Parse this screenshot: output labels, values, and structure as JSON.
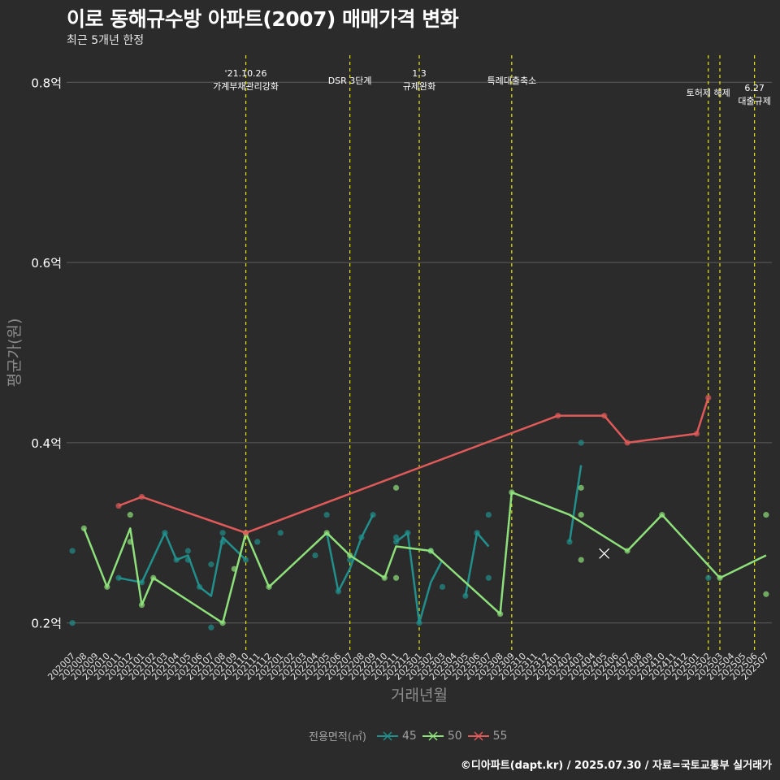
{
  "header": {
    "title": "이로 동해규수방 아파트(2007) 매매가격 변화",
    "subtitle": "최근 5개년 한정"
  },
  "footer": {
    "caption": "©디아파트(dapt.kr) / 2025.07.30 / 자료=국토교통부 실거래가"
  },
  "legend": {
    "title": "전용면적(㎡)",
    "items": [
      {
        "label": "45",
        "color": "#21908c"
      },
      {
        "label": "50",
        "color": "#8ee07a"
      },
      {
        "label": "55",
        "color": "#e05a5a"
      }
    ]
  },
  "chart_data": {
    "type": "line",
    "xlabel": "거래년월",
    "ylabel": "평균가(원)",
    "ylim": [
      0.17,
      0.83
    ],
    "yticks": [
      {
        "value": 0.2,
        "label": "0.2억"
      },
      {
        "value": 0.4,
        "label": "0.4억"
      },
      {
        "value": 0.6,
        "label": "0.6억"
      },
      {
        "value": 0.8,
        "label": "0.8억"
      }
    ],
    "categories": [
      "202007",
      "202008",
      "202009",
      "202010",
      "202011",
      "202012",
      "202101",
      "202102",
      "202103",
      "202104",
      "202105",
      "202106",
      "202107",
      "202108",
      "202109",
      "202110",
      "202111",
      "202112",
      "202201",
      "202202",
      "202203",
      "202204",
      "202205",
      "202206",
      "202207",
      "202208",
      "202209",
      "202210",
      "202211",
      "202212",
      "202301",
      "202302",
      "202303",
      "202304",
      "202305",
      "202306",
      "202307",
      "202308",
      "202309",
      "202310",
      "202311",
      "202312",
      "202401",
      "202402",
      "202403",
      "202404",
      "202405",
      "202406",
      "202407",
      "202408",
      "202409",
      "202410",
      "202411",
      "202412",
      "202501",
      "202502",
      "202503",
      "202504",
      "202505",
      "202506",
      "202507"
    ],
    "events": [
      {
        "month": "202110",
        "label": "'21.10.26\n가계부채관리강화",
        "level": 0
      },
      {
        "month": "202207",
        "label": "DSR 3단계",
        "level": 2
      },
      {
        "month": "202301",
        "label": "1.3\n규제완화",
        "level": 0
      },
      {
        "month": "202309",
        "label": "특례대출축소",
        "level": 2
      },
      {
        "month": "202502",
        "label": "토허제 해제",
        "level": 1
      },
      {
        "month": "202503",
        "label": "",
        "level": 1
      },
      {
        "month": "202506",
        "label": "6.27\n대출규제",
        "level": 3
      }
    ],
    "series": [
      {
        "name": "45",
        "color": "#21908c",
        "line": [
          [
            4,
            0.25
          ],
          [
            6,
            0.245
          ],
          [
            8,
            0.3
          ],
          [
            9,
            0.27
          ],
          [
            10,
            0.275
          ],
          [
            11,
            0.24
          ],
          [
            12,
            0.23
          ],
          [
            13,
            0.295
          ],
          [
            15,
            0.27
          ],
          [
            null,
            null
          ],
          [
            22,
            0.3
          ],
          [
            23,
            0.235
          ],
          [
            24,
            0.26
          ],
          [
            25,
            0.295
          ],
          [
            26,
            0.32
          ],
          [
            null,
            null
          ],
          [
            28,
            0.29
          ],
          [
            29,
            0.3
          ],
          [
            30,
            0.2
          ],
          [
            31,
            0.245
          ],
          [
            32,
            0.27
          ],
          [
            null,
            null
          ],
          [
            34,
            0.23
          ],
          [
            35,
            0.3
          ],
          [
            36,
            0.285
          ],
          [
            null,
            null
          ],
          [
            43,
            0.29
          ],
          [
            44,
            0.375
          ]
        ],
        "points": [
          [
            0,
            0.28
          ],
          [
            0,
            0.2
          ],
          [
            4,
            0.25
          ],
          [
            6,
            0.245
          ],
          [
            8,
            0.3
          ],
          [
            9,
            0.27
          ],
          [
            10,
            0.28
          ],
          [
            10,
            0.27
          ],
          [
            11,
            0.24
          ],
          [
            12,
            0.265
          ],
          [
            12,
            0.195
          ],
          [
            13,
            0.3
          ],
          [
            13,
            0.29
          ],
          [
            15,
            0.27
          ],
          [
            16,
            0.29
          ],
          [
            18,
            0.3
          ],
          [
            21,
            0.275
          ],
          [
            22,
            0.32
          ],
          [
            23,
            0.235
          ],
          [
            24,
            0.27
          ],
          [
            25,
            0.295
          ],
          [
            26,
            0.32
          ],
          [
            28,
            0.295
          ],
          [
            28,
            0.29
          ],
          [
            29,
            0.3
          ],
          [
            30,
            0.2
          ],
          [
            31,
            0.28
          ],
          [
            32,
            0.24
          ],
          [
            34,
            0.23
          ],
          [
            35,
            0.3
          ],
          [
            36,
            0.32
          ],
          [
            36,
            0.25
          ],
          [
            43,
            0.29
          ],
          [
            44,
            0.4
          ],
          [
            55,
            0.25
          ]
        ]
      },
      {
        "name": "50",
        "color": "#8ee07a",
        "line": [
          [
            1,
            0.305
          ],
          [
            3,
            0.24
          ],
          [
            5,
            0.305
          ],
          [
            6,
            0.22
          ],
          [
            7,
            0.25
          ],
          [
            13,
            0.2
          ],
          [
            15,
            0.3
          ],
          [
            17,
            0.24
          ],
          [
            22,
            0.3
          ],
          [
            24,
            0.275
          ],
          [
            27,
            0.25
          ],
          [
            28,
            0.285
          ],
          [
            31,
            0.28
          ],
          [
            37,
            0.21
          ],
          [
            38,
            0.345
          ],
          [
            43,
            0.32
          ],
          [
            48,
            0.28
          ],
          [
            51,
            0.32
          ],
          [
            56,
            0.25
          ],
          [
            60,
            0.275
          ]
        ],
        "points": [
          [
            1,
            0.305
          ],
          [
            3,
            0.24
          ],
          [
            5,
            0.32
          ],
          [
            5,
            0.29
          ],
          [
            6,
            0.22
          ],
          [
            7,
            0.25
          ],
          [
            13,
            0.2
          ],
          [
            14,
            0.26
          ],
          [
            15,
            0.3
          ],
          [
            17,
            0.24
          ],
          [
            22,
            0.3
          ],
          [
            24,
            0.275
          ],
          [
            27,
            0.25
          ],
          [
            28,
            0.35
          ],
          [
            28,
            0.25
          ],
          [
            31,
            0.28
          ],
          [
            37,
            0.21
          ],
          [
            38,
            0.345
          ],
          [
            44,
            0.35
          ],
          [
            44,
            0.32
          ],
          [
            44,
            0.27
          ],
          [
            48,
            0.28
          ],
          [
            51,
            0.32
          ],
          [
            56,
            0.25
          ],
          [
            60,
            0.32
          ],
          [
            60,
            0.232
          ]
        ],
        "cross": [
          [
            46,
            0.277
          ]
        ]
      },
      {
        "name": "55",
        "color": "#e05a5a",
        "line": [
          [
            4,
            0.33
          ],
          [
            6,
            0.34
          ],
          [
            15,
            0.3
          ],
          [
            42,
            0.43
          ],
          [
            46,
            0.43
          ],
          [
            48,
            0.4
          ],
          [
            54,
            0.41
          ],
          [
            55,
            0.45
          ]
        ],
        "points": [
          [
            4,
            0.33
          ],
          [
            6,
            0.34
          ],
          [
            15,
            0.3
          ],
          [
            42,
            0.43
          ],
          [
            46,
            0.43
          ],
          [
            48,
            0.4
          ],
          [
            54,
            0.41
          ],
          [
            55,
            0.45
          ]
        ]
      }
    ]
  }
}
